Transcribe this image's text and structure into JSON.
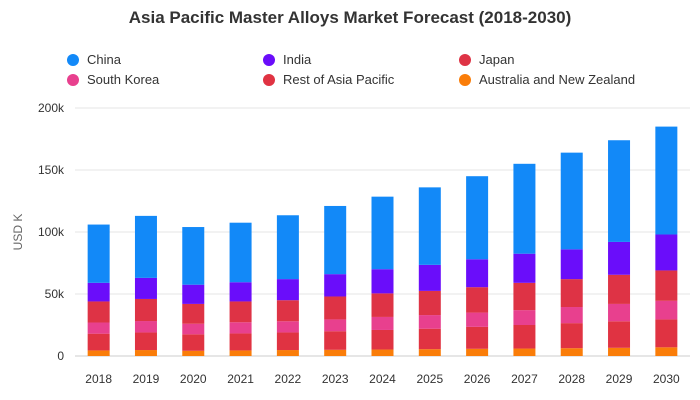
{
  "chart_data": {
    "type": "bar",
    "stacked": true,
    "title": "Asia Pacific Master Alloys Market Forecast (2018-2030)",
    "xlabel": "",
    "ylabel": "USD K",
    "ylim": [
      0,
      200000
    ],
    "yticks": [
      0,
      50000,
      100000,
      150000,
      200000
    ],
    "ytick_labels": [
      "0",
      "50k",
      "100k",
      "150k",
      "200k"
    ],
    "grid": true,
    "legend_position": "top",
    "categories": [
      "2018",
      "2019",
      "2020",
      "2021",
      "2022",
      "2023",
      "2024",
      "2025",
      "2026",
      "2027",
      "2028",
      "2029",
      "2030"
    ],
    "series": [
      {
        "name": "Australia and New Zealand",
        "color": "#fa7d09",
        "values": [
          4500,
          4800,
          4200,
          4500,
          4800,
          5000,
          5200,
          5500,
          5800,
          6000,
          6300,
          6600,
          7000
        ]
      },
      {
        "name": "Rest of Asia Pacific",
        "color": "#e03342",
        "values": [
          13500,
          14200,
          13300,
          13700,
          14200,
          15000,
          15800,
          16500,
          17700,
          19000,
          20200,
          21400,
          22500
        ]
      },
      {
        "name": "South Korea",
        "color": "#e8408e",
        "values": [
          9000,
          9200,
          8500,
          9000,
          9000,
          9500,
          10500,
          11000,
          11500,
          12000,
          13000,
          14000,
          15000
        ]
      },
      {
        "name": "Japan",
        "color": "#de3345",
        "values": [
          17000,
          17800,
          16000,
          16800,
          17000,
          18500,
          19000,
          19500,
          20500,
          22000,
          22500,
          23500,
          24500
        ]
      },
      {
        "name": "India",
        "color": "#6a0dfa",
        "values": [
          15000,
          17000,
          15500,
          15500,
          17000,
          18000,
          19500,
          21000,
          22500,
          23500,
          24000,
          26500,
          29000
        ]
      },
      {
        "name": "China",
        "color": "#1289f8",
        "values": [
          47000,
          50000,
          46500,
          48000,
          51500,
          55000,
          58500,
          62500,
          67000,
          72500,
          78000,
          82000,
          87000
        ]
      }
    ],
    "legend_order": [
      "China",
      "India",
      "Japan",
      "South Korea",
      "Rest of Asia Pacific",
      "Australia and New Zealand"
    ]
  }
}
